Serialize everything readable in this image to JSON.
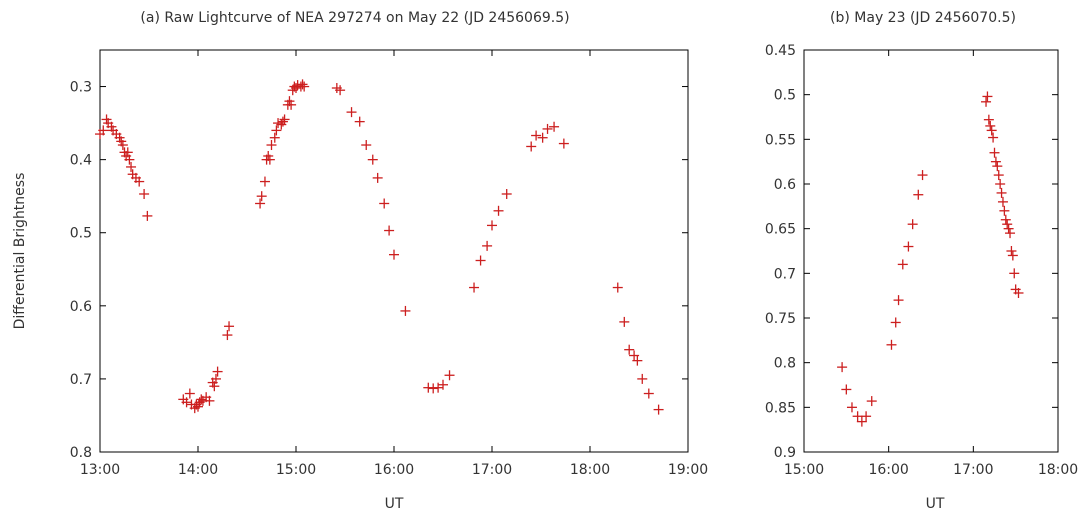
{
  "chart_data": [
    {
      "type": "scatter",
      "title": "(a) Raw Lightcurve of NEA 297274 on May 22 (JD 2456069.5)",
      "xlabel": "UT",
      "ylabel": "Differential Brightness",
      "y_inverted": true,
      "xlim": [
        "13:00",
        "19:00"
      ],
      "ylim": [
        0.25,
        0.8
      ],
      "xticks": [
        "13:00",
        "14:00",
        "15:00",
        "16:00",
        "17:00",
        "18:00",
        "19:00"
      ],
      "yticks": [
        "0.3",
        "0.4",
        "0.5",
        "0.6",
        "0.7",
        "0.8"
      ],
      "marker_color": "#cc1f1f",
      "series": [
        {
          "points": [
            [
              "13:00",
              0.365
            ],
            [
              "13:02",
              0.36
            ],
            [
              "13:04",
              0.345
            ],
            [
              "13:05",
              0.35
            ],
            [
              "13:07",
              0.355
            ],
            [
              "13:08",
              0.36
            ],
            [
              "13:10",
              0.365
            ],
            [
              "13:12",
              0.37
            ],
            [
              "13:13",
              0.375
            ],
            [
              "13:14",
              0.38
            ],
            [
              "13:15",
              0.39
            ],
            [
              "13:16",
              0.395
            ],
            [
              "13:17",
              0.39
            ],
            [
              "13:18",
              0.4
            ],
            [
              "13:19",
              0.41
            ],
            [
              "13:20",
              0.42
            ],
            [
              "13:22",
              0.425
            ],
            [
              "13:24",
              0.43
            ],
            [
              "13:27",
              0.447
            ],
            [
              "13:29",
              0.477
            ],
            [
              "13:51",
              0.728
            ],
            [
              "13:53",
              0.732
            ],
            [
              "13:55",
              0.72
            ],
            [
              "13:56",
              0.735
            ],
            [
              "13:58",
              0.74
            ],
            [
              "13:59",
              0.735
            ],
            [
              "14:00",
              0.738
            ],
            [
              "14:01",
              0.732
            ],
            [
              "14:02",
              0.728
            ],
            [
              "14:03",
              0.73
            ],
            [
              "14:05",
              0.725
            ],
            [
              "14:07",
              0.73
            ],
            [
              "14:09",
              0.705
            ],
            [
              "14:10",
              0.71
            ],
            [
              "14:11",
              0.7
            ],
            [
              "14:12",
              0.69
            ],
            [
              "14:18",
              0.64
            ],
            [
              "14:19",
              0.628
            ],
            [
              "14:38",
              0.46
            ],
            [
              "14:39",
              0.45
            ],
            [
              "14:41",
              0.43
            ],
            [
              "14:42",
              0.4
            ],
            [
              "14:43",
              0.395
            ],
            [
              "14:44",
              0.4
            ],
            [
              "14:45",
              0.38
            ],
            [
              "14:47",
              0.37
            ],
            [
              "14:48",
              0.36
            ],
            [
              "14:49",
              0.35
            ],
            [
              "14:51",
              0.352
            ],
            [
              "14:52",
              0.348
            ],
            [
              "14:53",
              0.345
            ],
            [
              "14:55",
              0.325
            ],
            [
              "14:56",
              0.32
            ],
            [
              "14:57",
              0.325
            ],
            [
              "14:58",
              0.305
            ],
            [
              "14:59",
              0.3
            ],
            [
              "15:00",
              0.302
            ],
            [
              "15:01",
              0.298
            ],
            [
              "15:03",
              0.3
            ],
            [
              "15:04",
              0.297
            ],
            [
              "15:05",
              0.3
            ],
            [
              "15:25",
              0.302
            ],
            [
              "15:27",
              0.305
            ],
            [
              "15:34",
              0.335
            ],
            [
              "15:39",
              0.348
            ],
            [
              "15:43",
              0.38
            ],
            [
              "15:47",
              0.4
            ],
            [
              "15:50",
              0.425
            ],
            [
              "15:54",
              0.46
            ],
            [
              "15:57",
              0.497
            ],
            [
              "16:00",
              0.53
            ],
            [
              "16:07",
              0.607
            ],
            [
              "16:21",
              0.712
            ],
            [
              "16:24",
              0.713
            ],
            [
              "16:27",
              0.712
            ],
            [
              "16:30",
              0.708
            ],
            [
              "16:34",
              0.695
            ],
            [
              "16:49",
              0.575
            ],
            [
              "16:53",
              0.538
            ],
            [
              "16:57",
              0.518
            ],
            [
              "17:00",
              0.49
            ],
            [
              "17:04",
              0.47
            ],
            [
              "17:09",
              0.447
            ],
            [
              "17:24",
              0.382
            ],
            [
              "17:27",
              0.367
            ],
            [
              "17:31",
              0.37
            ],
            [
              "17:34",
              0.358
            ],
            [
              "17:38",
              0.355
            ],
            [
              "17:44",
              0.378
            ],
            [
              "18:17",
              0.575
            ],
            [
              "18:21",
              0.622
            ],
            [
              "18:24",
              0.66
            ],
            [
              "18:27",
              0.668
            ],
            [
              "18:29",
              0.675
            ],
            [
              "18:32",
              0.7
            ],
            [
              "18:36",
              0.72
            ],
            [
              "18:42",
              0.742
            ]
          ]
        }
      ]
    },
    {
      "type": "scatter",
      "title": "(b) May 23 (JD 2456070.5)",
      "xlabel": "UT",
      "ylabel": "",
      "y_inverted": true,
      "xlim": [
        "15:00",
        "18:00"
      ],
      "ylim": [
        0.45,
        0.9
      ],
      "xticks": [
        "15:00",
        "16:00",
        "17:00",
        "18:00"
      ],
      "yticks": [
        "0.45",
        "0.5",
        "0.55",
        "0.6",
        "0.65",
        "0.7",
        "0.75",
        "0.8",
        "0.85",
        "0.9"
      ],
      "marker_color": "#cc1f1f",
      "series": [
        {
          "points": [
            [
              "15:27",
              0.805
            ],
            [
              "15:30",
              0.83
            ],
            [
              "15:34",
              0.85
            ],
            [
              "15:38",
              0.86
            ],
            [
              "15:41",
              0.866
            ],
            [
              "15:44",
              0.86
            ],
            [
              "15:48",
              0.843
            ],
            [
              "16:02",
              0.78
            ],
            [
              "16:05",
              0.755
            ],
            [
              "16:07",
              0.73
            ],
            [
              "16:10",
              0.69
            ],
            [
              "16:14",
              0.67
            ],
            [
              "16:17",
              0.645
            ],
            [
              "16:21",
              0.612
            ],
            [
              "16:24",
              0.59
            ],
            [
              "17:09",
              0.508
            ],
            [
              "17:10",
              0.502
            ],
            [
              "17:11",
              0.528
            ],
            [
              "17:12",
              0.535
            ],
            [
              "17:13",
              0.54
            ],
            [
              "17:14",
              0.548
            ],
            [
              "17:15",
              0.565
            ],
            [
              "17:16",
              0.575
            ],
            [
              "17:17",
              0.58
            ],
            [
              "17:18",
              0.59
            ],
            [
              "17:19",
              0.6
            ],
            [
              "17:20",
              0.61
            ],
            [
              "17:21",
              0.62
            ],
            [
              "17:22",
              0.63
            ],
            [
              "17:23",
              0.64
            ],
            [
              "17:24",
              0.645
            ],
            [
              "17:25",
              0.65
            ],
            [
              "17:26",
              0.655
            ],
            [
              "17:27",
              0.675
            ],
            [
              "17:28",
              0.68
            ],
            [
              "17:29",
              0.7
            ],
            [
              "17:30",
              0.718
            ],
            [
              "17:32",
              0.722
            ]
          ]
        }
      ]
    }
  ]
}
